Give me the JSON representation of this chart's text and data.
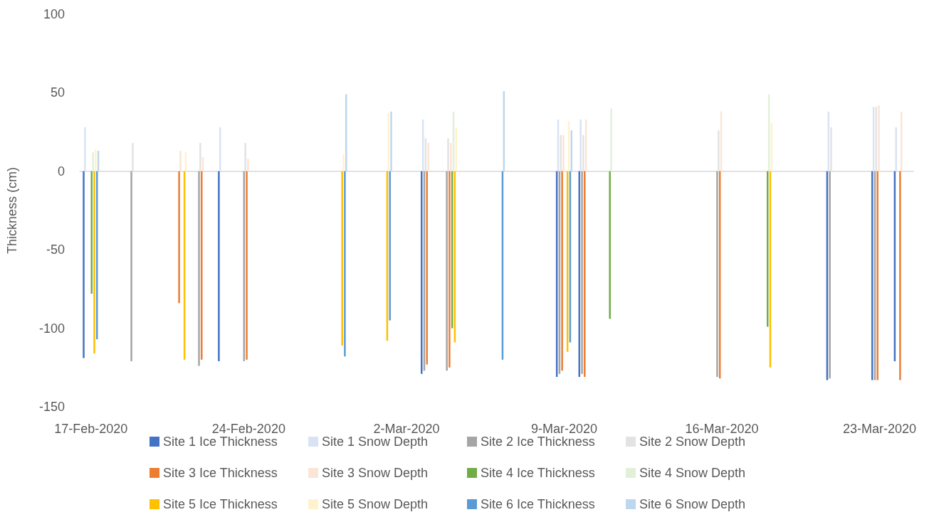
{
  "chart_data": {
    "type": "bar",
    "ylabel": "Thickness (cm)",
    "ylim": [
      -150,
      100
    ],
    "yticks": [
      -150,
      -100,
      -50,
      0,
      50,
      100
    ],
    "legend": "bottom",
    "categories": [
      "17-Feb-2020",
      null,
      null,
      null,
      null,
      null,
      null,
      "24-Feb-2020",
      null,
      null,
      null,
      null,
      null,
      null,
      "2-Mar-2020",
      null,
      null,
      null,
      null,
      null,
      null,
      "9-Mar-2020",
      null,
      null,
      null,
      null,
      null,
      null,
      "16-Mar-2020",
      null,
      null,
      null,
      null,
      null,
      null,
      "23-Mar-2020",
      null
    ],
    "series": [
      {
        "name": "Site 1 Ice Thickness",
        "color": "#4472c4",
        "values": [
          -119,
          null,
          null,
          null,
          null,
          null,
          -121,
          null,
          null,
          null,
          null,
          null,
          null,
          null,
          null,
          -129,
          null,
          null,
          null,
          null,
          null,
          -131,
          -131,
          null,
          null,
          null,
          null,
          null,
          null,
          null,
          null,
          null,
          null,
          -133,
          null,
          -133,
          -121
        ]
      },
      {
        "name": "Site 1 Snow Depth",
        "color": "#dae3f3",
        "values": [
          28,
          null,
          null,
          null,
          null,
          null,
          28,
          null,
          null,
          null,
          null,
          null,
          null,
          null,
          null,
          33,
          null,
          null,
          null,
          null,
          null,
          33,
          33,
          null,
          null,
          null,
          null,
          null,
          null,
          null,
          null,
          null,
          null,
          38,
          null,
          41,
          28
        ]
      },
      {
        "name": "Site 2 Ice Thickness",
        "color": "#a5a5a5",
        "values": [
          null,
          null,
          -121,
          null,
          null,
          -124,
          null,
          -121,
          null,
          null,
          null,
          null,
          null,
          null,
          null,
          -127,
          -127,
          null,
          null,
          null,
          null,
          -129,
          -129,
          null,
          null,
          null,
          null,
          null,
          -131,
          null,
          null,
          null,
          null,
          -132,
          null,
          -133,
          null
        ]
      },
      {
        "name": "Site 2 Snow Depth",
        "color": "#e3e3e3",
        "values": [
          null,
          null,
          18,
          null,
          null,
          18,
          null,
          18,
          null,
          null,
          null,
          null,
          null,
          null,
          null,
          21,
          21,
          null,
          null,
          null,
          null,
          23,
          23,
          null,
          null,
          null,
          null,
          null,
          26,
          null,
          null,
          null,
          null,
          28,
          null,
          41,
          null
        ]
      },
      {
        "name": "Site 3 Ice Thickness",
        "color": "#ed7d31",
        "values": [
          null,
          null,
          null,
          null,
          -84,
          -120,
          null,
          -120,
          null,
          null,
          null,
          null,
          null,
          null,
          null,
          -123,
          -125,
          null,
          null,
          null,
          null,
          -127,
          -131,
          null,
          null,
          null,
          null,
          null,
          -132,
          null,
          null,
          null,
          null,
          null,
          null,
          -133,
          -133
        ]
      },
      {
        "name": "Site 3 Snow Depth",
        "color": "#fbe5d6",
        "values": [
          null,
          null,
          null,
          null,
          13,
          9,
          null,
          8,
          null,
          null,
          null,
          null,
          null,
          null,
          null,
          18,
          18,
          null,
          null,
          null,
          null,
          23,
          33,
          null,
          null,
          null,
          null,
          null,
          38,
          null,
          null,
          null,
          null,
          null,
          null,
          42,
          38
        ]
      },
      {
        "name": "Site 4 Ice Thickness",
        "color": "#70ad47",
        "values": [
          -78,
          null,
          null,
          null,
          null,
          null,
          null,
          null,
          null,
          null,
          null,
          null,
          null,
          null,
          null,
          null,
          -100,
          null,
          null,
          null,
          null,
          null,
          null,
          -94,
          null,
          null,
          null,
          null,
          null,
          null,
          -99,
          null,
          null,
          null,
          null,
          null,
          null
        ]
      },
      {
        "name": "Site 4 Snow Depth",
        "color": "#e2f0d9",
        "values": [
          12,
          null,
          null,
          null,
          null,
          null,
          null,
          null,
          null,
          null,
          null,
          null,
          null,
          null,
          null,
          null,
          38,
          null,
          null,
          null,
          null,
          null,
          null,
          40,
          null,
          null,
          null,
          null,
          null,
          null,
          49,
          null,
          null,
          null,
          null,
          null,
          null
        ]
      },
      {
        "name": "Site 5 Ice Thickness",
        "color": "#ffc000",
        "values": [
          -116,
          null,
          null,
          null,
          -120,
          null,
          null,
          null,
          null,
          null,
          null,
          -111,
          null,
          -108,
          null,
          null,
          -109,
          null,
          null,
          null,
          null,
          -115,
          null,
          null,
          null,
          null,
          null,
          null,
          null,
          null,
          -125,
          null,
          null,
          null,
          null,
          null,
          null
        ]
      },
      {
        "name": "Site 5 Snow Depth",
        "color": "#fff2cc",
        "values": [
          14,
          null,
          null,
          null,
          12,
          null,
          null,
          null,
          null,
          null,
          null,
          11,
          null,
          37,
          null,
          null,
          28,
          null,
          null,
          null,
          null,
          32,
          null,
          null,
          null,
          null,
          null,
          null,
          null,
          null,
          31,
          null,
          null,
          null,
          null,
          null,
          null
        ]
      },
      {
        "name": "Site 6 Ice Thickness",
        "color": "#5b9bd5",
        "values": [
          -107,
          null,
          null,
          null,
          null,
          null,
          null,
          null,
          null,
          null,
          null,
          -118,
          null,
          -95,
          null,
          null,
          null,
          null,
          -120,
          null,
          null,
          -109,
          null,
          null,
          null,
          null,
          null,
          null,
          null,
          null,
          null,
          null,
          null,
          null,
          null,
          null,
          null
        ]
      },
      {
        "name": "Site 6 Snow Depth",
        "color": "#bdd7ee",
        "values": [
          13,
          null,
          null,
          null,
          null,
          null,
          null,
          null,
          null,
          null,
          null,
          49,
          null,
          38,
          null,
          null,
          null,
          null,
          51,
          null,
          null,
          26,
          null,
          null,
          null,
          null,
          null,
          null,
          null,
          null,
          null,
          null,
          null,
          null,
          null,
          null,
          null
        ]
      }
    ]
  }
}
